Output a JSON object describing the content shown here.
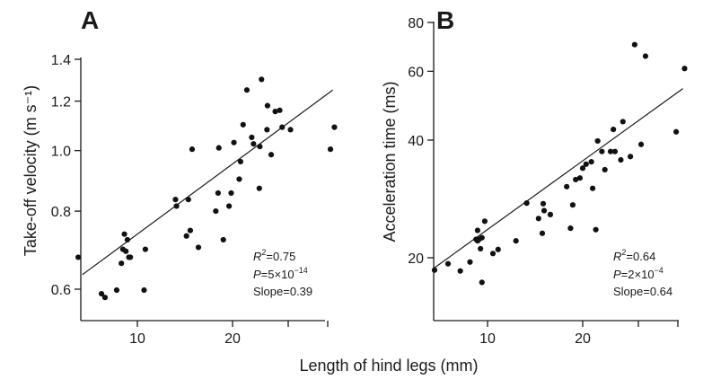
{
  "xlabel": "Length of hind legs (mm)",
  "chart_data": [
    {
      "type": "scatter",
      "panel": "A",
      "ylabel": "Take-off velocity (m s⁻¹)",
      "xscale": "log",
      "yscale": "log",
      "xlim": [
        5.5,
        43
      ],
      "ylim": [
        0.55,
        1.4
      ],
      "xticks": [
        10,
        20,
        30,
        40
      ],
      "xtick_labels": [
        "10",
        "20",
        "",
        ""
      ],
      "yticks": [
        0.6,
        0.8,
        1.0,
        1.2,
        1.4
      ],
      "ytick_labels": [
        "0.6",
        "0.8",
        "1.0",
        "1.2",
        "1.4"
      ],
      "stats": [
        "R²=0.75",
        "P=5×10⁻¹⁴",
        "Slope=0.39"
      ],
      "fit_line": {
        "x": [
          6.7,
          41.5
        ],
        "y": [
          0.633
        ],
        "y_end": [
          1.25
        ]
      },
      "points": [
        [
          6.5,
          0.675
        ],
        [
          7.7,
          0.59
        ],
        [
          7.9,
          0.582
        ],
        [
          8.6,
          0.598
        ],
        [
          8.9,
          0.66
        ],
        [
          9.0,
          0.695
        ],
        [
          9.1,
          0.735
        ],
        [
          9.2,
          0.69
        ],
        [
          9.3,
          0.72
        ],
        [
          9.4,
          0.675
        ],
        [
          9.5,
          0.675
        ],
        [
          10.5,
          0.598
        ],
        [
          10.6,
          0.695
        ],
        [
          13.2,
          0.835
        ],
        [
          13.3,
          0.815
        ],
        [
          14.3,
          0.73
        ],
        [
          14.5,
          0.835
        ],
        [
          14.7,
          0.745
        ],
        [
          14.9,
          1.005
        ],
        [
          15.6,
          0.7
        ],
        [
          17.7,
          0.8
        ],
        [
          18.0,
          0.855
        ],
        [
          18.1,
          1.01
        ],
        [
          18.7,
          0.72
        ],
        [
          19.5,
          0.815
        ],
        [
          19.8,
          0.855
        ],
        [
          20.2,
          1.03
        ],
        [
          21.0,
          0.9
        ],
        [
          21.2,
          0.96
        ],
        [
          21.6,
          1.1
        ],
        [
          22.2,
          1.25
        ],
        [
          23.0,
          1.05
        ],
        [
          23.3,
          1.025
        ],
        [
          24.3,
          0.87
        ],
        [
          24.4,
          1.015
        ],
        [
          24.7,
          1.3
        ],
        [
          25.7,
          1.08
        ],
        [
          25.8,
          1.18
        ],
        [
          26.5,
          0.985
        ],
        [
          27.3,
          1.155
        ],
        [
          28.2,
          1.16
        ],
        [
          28.7,
          1.09
        ],
        [
          30.5,
          1.08
        ],
        [
          40.8,
          1.005
        ],
        [
          42.0,
          1.09
        ]
      ]
    },
    {
      "type": "scatter",
      "panel": "B",
      "ylabel": "Acceleration time (ms)",
      "xscale": "log",
      "yscale": "log",
      "xlim": [
        5.5,
        43
      ],
      "ylim": [
        17.5,
        80
      ],
      "xticks": [
        10,
        20,
        30,
        40
      ],
      "xtick_labels": [
        "10",
        "20",
        "",
        ""
      ],
      "yticks": [
        20,
        40,
        60,
        80
      ],
      "ytick_labels": [
        "20",
        "40",
        "60",
        "80"
      ],
      "stats": [
        "R²=0.64",
        "P=2×10⁻⁴",
        "Slope=0.64"
      ],
      "fit_line": {
        "x": [
          6.7,
          41.5
        ],
        "y": [
          18.7
        ],
        "y_end": [
          54.2
        ]
      },
      "points": [
        [
          6.8,
          18.6
        ],
        [
          7.5,
          19.3
        ],
        [
          8.2,
          18.5
        ],
        [
          8.8,
          19.5
        ],
        [
          9.2,
          22.3
        ],
        [
          9.3,
          23.5
        ],
        [
          9.3,
          22.1
        ],
        [
          9.4,
          22.3
        ],
        [
          9.5,
          21.1
        ],
        [
          9.6,
          17.3
        ],
        [
          9.6,
          22.5
        ],
        [
          9.8,
          24.8
        ],
        [
          10.4,
          20.5
        ],
        [
          10.8,
          21.0
        ],
        [
          12.3,
          22.1
        ],
        [
          13.3,
          27.6
        ],
        [
          14.5,
          25.2
        ],
        [
          14.9,
          23.1
        ],
        [
          15.0,
          27.5
        ],
        [
          15.1,
          26.4
        ],
        [
          15.8,
          25.8
        ],
        [
          17.8,
          30.4
        ],
        [
          18.3,
          23.8
        ],
        [
          18.6,
          27.3
        ],
        [
          19.0,
          31.7
        ],
        [
          19.6,
          32.0
        ],
        [
          20.0,
          33.9
        ],
        [
          20.5,
          34.7
        ],
        [
          21.3,
          35.2
        ],
        [
          21.5,
          30.1
        ],
        [
          22.0,
          23.6
        ],
        [
          22.3,
          39.8
        ],
        [
          23.0,
          37.4
        ],
        [
          23.5,
          33.6
        ],
        [
          24.5,
          37.4
        ],
        [
          25.0,
          42.6
        ],
        [
          25.3,
          37.4
        ],
        [
          26.4,
          35.6
        ],
        [
          26.8,
          44.6
        ],
        [
          28.3,
          36.3
        ],
        [
          29.2,
          70.2
        ],
        [
          30.6,
          39.0
        ],
        [
          31.6,
          65.6
        ],
        [
          39.5,
          42.0
        ],
        [
          42.0,
          61.0
        ]
      ]
    }
  ]
}
